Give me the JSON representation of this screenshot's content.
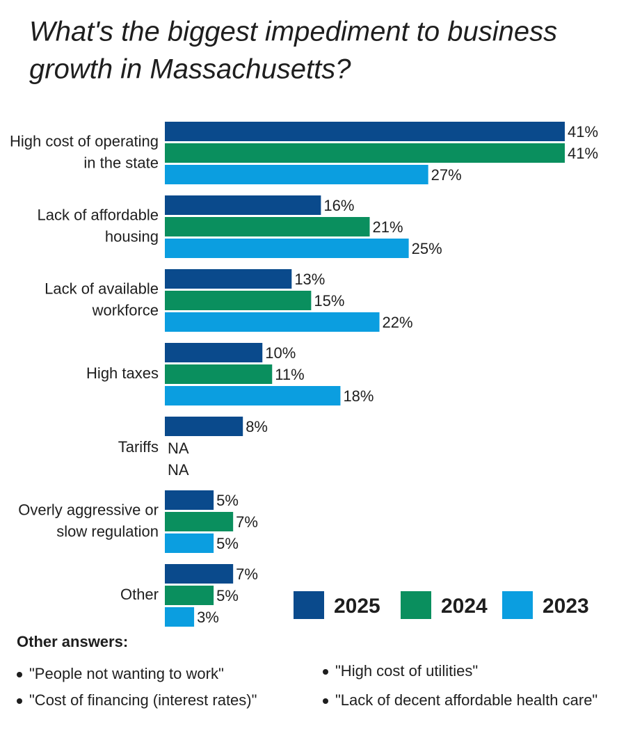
{
  "chart_data": {
    "type": "bar",
    "orientation": "horizontal",
    "title": [
      "What's the biggest impediment to business",
      "growth in Massachusetts?"
    ],
    "categories": [
      [
        "High cost of operating",
        "in the state"
      ],
      [
        "Lack of affordable",
        "housing"
      ],
      [
        "Lack of available",
        "workforce"
      ],
      [
        "High taxes"
      ],
      [
        "Tariffs"
      ],
      [
        "Overly aggressive or",
        "slow regulation"
      ],
      [
        "Other"
      ]
    ],
    "series": [
      {
        "name": "2025",
        "color": "#0a4a8c",
        "values": [
          41,
          16,
          13,
          10,
          8,
          5,
          7
        ],
        "value_labels": [
          "41%",
          "16%",
          "13%",
          "10%",
          "8%",
          "5%",
          "7%"
        ]
      },
      {
        "name": "2024",
        "color": "#0a8f5e",
        "values": [
          41,
          21,
          15,
          11,
          null,
          7,
          5
        ],
        "value_labels": [
          "41%",
          "21%",
          "15%",
          "11%",
          "NA",
          "7%",
          "5%"
        ]
      },
      {
        "name": "2023",
        "color": "#0b9ee0",
        "values": [
          27,
          25,
          22,
          18,
          null,
          5,
          3
        ],
        "value_labels": [
          "27%",
          "25%",
          "22%",
          "18%",
          "NA",
          "5%",
          "3%"
        ]
      }
    ],
    "xlim": [
      0,
      41
    ],
    "notes_title": "Other answers:",
    "notes": [
      "\"People not wanting to work\"",
      "\"Cost of financing (interest rates)\"",
      "\"High cost of utilities\"",
      "\"Lack of decent affordable health care\""
    ]
  }
}
